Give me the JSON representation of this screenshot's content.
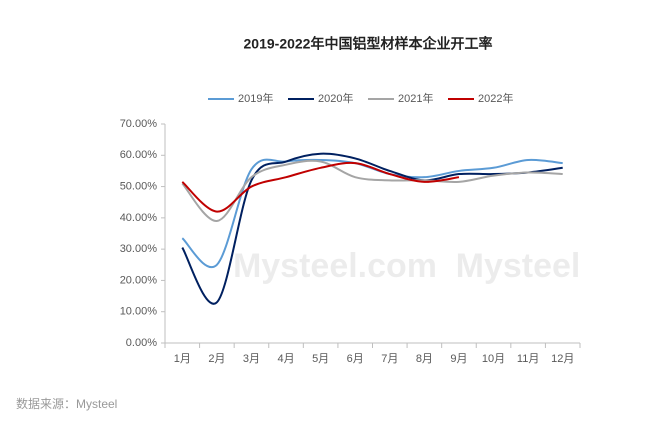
{
  "chart_data": {
    "type": "line",
    "title": "2019-2022年中国铝型材样本企业开工率",
    "source": "数据来源：Mysteel",
    "watermarks": [
      "Mysteel.com",
      "Mysteel"
    ],
    "categories": [
      "1月",
      "2月",
      "3月",
      "4月",
      "5月",
      "6月",
      "7月",
      "8月",
      "9月",
      "10月",
      "11月",
      "12月"
    ],
    "series": [
      {
        "name": "2019年",
        "color": "#5b9bd5",
        "values": [
          33.5,
          25,
          55.5,
          58,
          58.5,
          57.5,
          54,
          53,
          55,
          56,
          58.5,
          57.5
        ]
      },
      {
        "name": "2020年",
        "color": "#002060",
        "values": [
          30.5,
          13,
          52,
          58,
          60.5,
          59,
          55,
          52,
          54,
          54,
          54.5,
          56
        ]
      },
      {
        "name": "2021年",
        "color": "#a5a5a5",
        "values": [
          51,
          39,
          53,
          57,
          58,
          53,
          52,
          52,
          51.5,
          53.5,
          54.5,
          54
        ]
      },
      {
        "name": "2022年",
        "color": "#c00000",
        "values": [
          51.5,
          42,
          50,
          53,
          56,
          57.5,
          54,
          51.5,
          53,
          null,
          null,
          null
        ]
      }
    ],
    "ylim": [
      0,
      70
    ],
    "yticks": [
      {
        "value": 0,
        "label": "0.00%"
      },
      {
        "value": 10,
        "label": "10.00%"
      },
      {
        "value": 20,
        "label": "20.00%"
      },
      {
        "value": 30,
        "label": "30.00%"
      },
      {
        "value": 40,
        "label": "40.00%"
      },
      {
        "value": 50,
        "label": "50.00%"
      },
      {
        "value": 60,
        "label": "60.00%"
      },
      {
        "value": 70,
        "label": "70.00%"
      }
    ],
    "grid": false,
    "legend": "top"
  }
}
